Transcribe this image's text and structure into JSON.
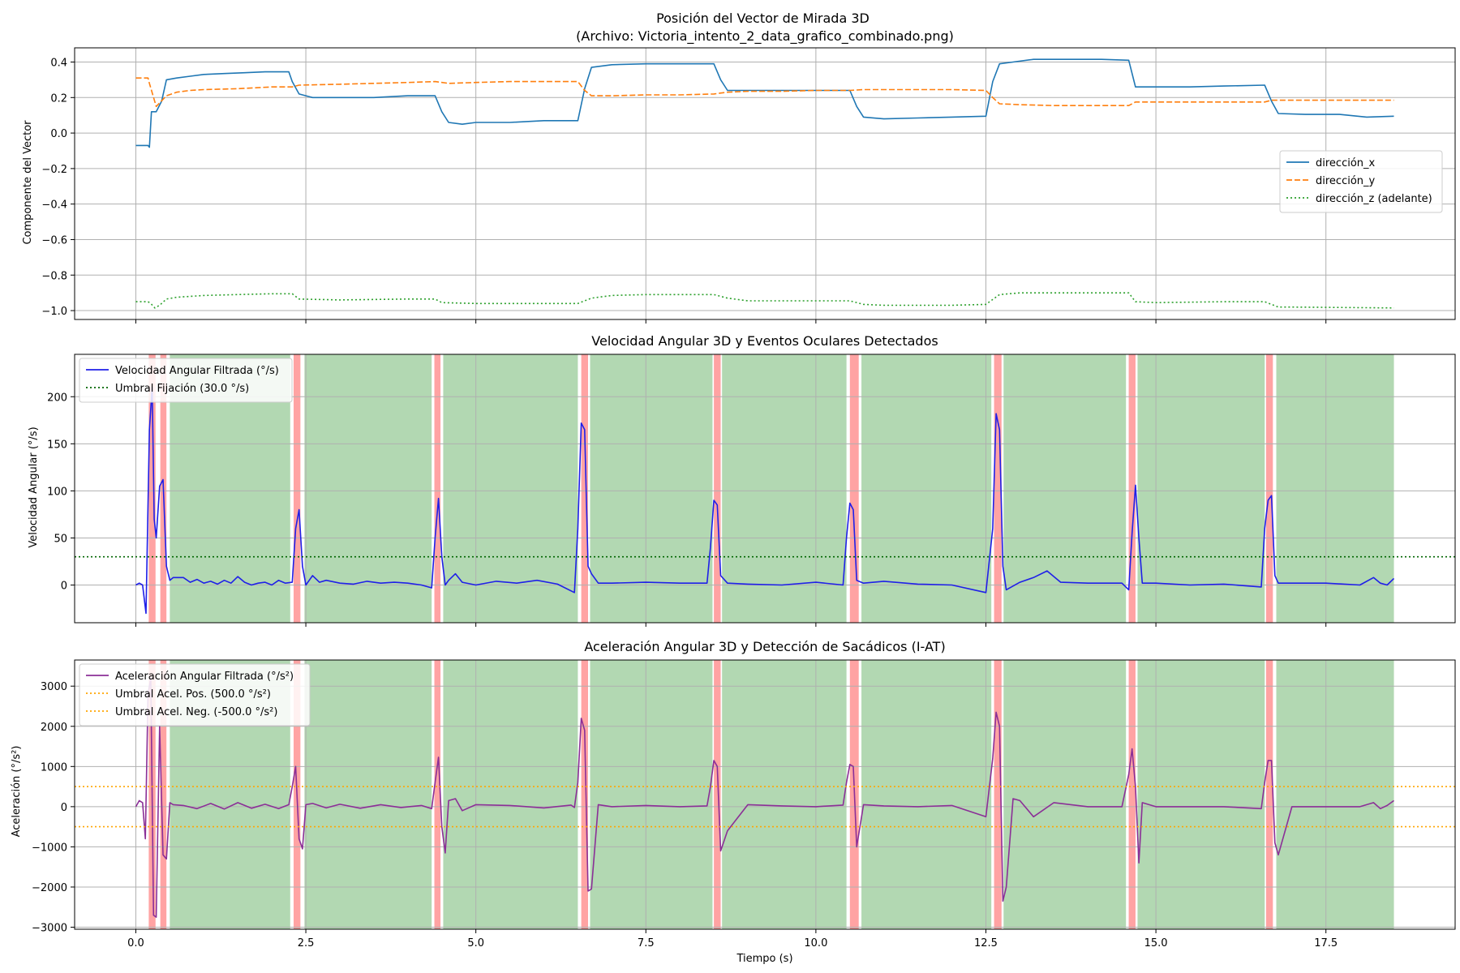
{
  "chart_data": [
    {
      "type": "line",
      "title": "Posición del Vector de Mirada 3D\n(Archivo: Victoria_intento_2_data_grafico_combinado.png)",
      "xlabel": "",
      "ylabel": "Componente del Vector",
      "xlim": [
        -0.9,
        19.4
      ],
      "ylim": [
        -1.05,
        0.48
      ],
      "xticks": [
        0,
        2.5,
        5,
        7.5,
        10,
        12.5,
        15,
        17.5
      ],
      "yticks": [
        0.4,
        0.2,
        0.0,
        -0.2,
        -0.4,
        -0.6,
        -0.8,
        -1.0
      ],
      "yticklabels": [
        "0.4",
        "0.2",
        "0.0",
        "−0.2",
        "−0.4",
        "−0.6",
        "−0.8",
        "−1.0"
      ],
      "grid": true,
      "legend_position": "center-right",
      "series": [
        {
          "name": "dirección_x",
          "color": "#1f77b4",
          "style": "solid",
          "x": [
            0,
            0.18,
            0.2,
            0.23,
            0.3,
            0.38,
            0.45,
            0.6,
            0.8,
            1.0,
            1.3,
            1.6,
            1.9,
            2.25,
            2.3,
            2.4,
            2.6,
            3.0,
            3.5,
            4.0,
            4.4,
            4.5,
            4.6,
            4.8,
            5.0,
            5.5,
            6.0,
            6.5,
            6.6,
            6.7,
            7.0,
            7.5,
            8.0,
            8.5,
            8.6,
            8.7,
            9.0,
            9.5,
            10.0,
            10.5,
            10.6,
            10.7,
            11.0,
            11.5,
            12.0,
            12.5,
            12.6,
            12.7,
            12.9,
            13.2,
            13.7,
            14.2,
            14.6,
            14.7,
            15.0,
            15.5,
            16.0,
            16.6,
            16.7,
            16.8,
            17.2,
            17.7,
            18.1,
            18.5
          ],
          "y": [
            -0.07,
            -0.07,
            -0.08,
            0.12,
            0.12,
            0.18,
            0.3,
            0.31,
            0.32,
            0.33,
            0.335,
            0.34,
            0.345,
            0.345,
            0.29,
            0.22,
            0.2,
            0.2,
            0.2,
            0.21,
            0.21,
            0.12,
            0.06,
            0.05,
            0.06,
            0.06,
            0.07,
            0.07,
            0.25,
            0.37,
            0.385,
            0.39,
            0.39,
            0.39,
            0.3,
            0.24,
            0.24,
            0.24,
            0.24,
            0.24,
            0.15,
            0.09,
            0.08,
            0.085,
            0.09,
            0.095,
            0.29,
            0.39,
            0.4,
            0.415,
            0.415,
            0.415,
            0.41,
            0.26,
            0.26,
            0.26,
            0.265,
            0.27,
            0.18,
            0.11,
            0.105,
            0.105,
            0.09,
            0.095
          ]
        },
        {
          "name": "dirección_y",
          "color": "#ff7f0e",
          "style": "dashed",
          "x": [
            0,
            0.18,
            0.2,
            0.3,
            0.45,
            0.6,
            0.8,
            1.0,
            1.5,
            2.0,
            2.3,
            2.4,
            3.0,
            3.5,
            4.0,
            4.4,
            4.6,
            5.0,
            5.5,
            6.0,
            6.5,
            6.6,
            6.7,
            7.0,
            7.5,
            8.0,
            8.5,
            8.7,
            9.0,
            9.5,
            10.0,
            10.5,
            10.7,
            11.0,
            11.5,
            12.0,
            12.5,
            12.6,
            12.7,
            13.0,
            13.5,
            14.0,
            14.6,
            14.7,
            15.0,
            16.0,
            16.6,
            16.7,
            17.0,
            18.5
          ],
          "y": [
            0.31,
            0.31,
            0.28,
            0.15,
            0.21,
            0.23,
            0.24,
            0.245,
            0.25,
            0.26,
            0.26,
            0.27,
            0.275,
            0.28,
            0.285,
            0.29,
            0.28,
            0.285,
            0.29,
            0.29,
            0.29,
            0.24,
            0.21,
            0.21,
            0.215,
            0.215,
            0.22,
            0.23,
            0.235,
            0.235,
            0.24,
            0.24,
            0.245,
            0.245,
            0.245,
            0.245,
            0.24,
            0.2,
            0.165,
            0.16,
            0.155,
            0.155,
            0.155,
            0.175,
            0.175,
            0.175,
            0.175,
            0.185,
            0.185,
            0.185
          ]
        },
        {
          "name": "dirección_z (adelante)",
          "color": "#2ca02c",
          "style": "dotted",
          "x": [
            0,
            0.18,
            0.22,
            0.28,
            0.35,
            0.45,
            0.6,
            1.0,
            1.5,
            2.0,
            2.3,
            2.4,
            3.0,
            4.0,
            4.4,
            4.5,
            5.0,
            6.0,
            6.5,
            6.7,
            7.0,
            7.5,
            8.0,
            8.5,
            8.7,
            9.0,
            10.0,
            10.5,
            10.7,
            11.0,
            12.0,
            12.5,
            12.7,
            13.0,
            14.0,
            14.6,
            14.7,
            15.0,
            16.0,
            16.6,
            16.8,
            17.0,
            18.5
          ],
          "y": [
            -0.95,
            -0.95,
            -0.96,
            -0.985,
            -0.97,
            -0.935,
            -0.925,
            -0.915,
            -0.91,
            -0.905,
            -0.905,
            -0.935,
            -0.94,
            -0.935,
            -0.935,
            -0.955,
            -0.96,
            -0.96,
            -0.96,
            -0.93,
            -0.915,
            -0.91,
            -0.91,
            -0.91,
            -0.93,
            -0.945,
            -0.945,
            -0.945,
            -0.965,
            -0.97,
            -0.97,
            -0.965,
            -0.91,
            -0.9,
            -0.9,
            -0.9,
            -0.95,
            -0.955,
            -0.95,
            -0.95,
            -0.98,
            -0.98,
            -0.985
          ]
        }
      ]
    },
    {
      "type": "line",
      "title": "Velocidad Angular 3D y Eventos Oculares Detectados",
      "xlabel": "",
      "ylabel": "Velocidad Angular (°/s)",
      "xlim": [
        -0.9,
        19.4
      ],
      "ylim": [
        -40,
        245
      ],
      "xticks": [
        0,
        2.5,
        5,
        7.5,
        10,
        12.5,
        15,
        17.5
      ],
      "yticks": [
        0,
        50,
        100,
        150,
        200
      ],
      "yticklabels": [
        "0",
        "50",
        "100",
        "150",
        "200"
      ],
      "grid": true,
      "legend_position": "top-left",
      "series": [
        {
          "name": "Velocidad Angular Filtrada (°/s)",
          "color": "#1f1fe8",
          "style": "solid",
          "x": [
            0,
            0.05,
            0.1,
            0.15,
            0.2,
            0.24,
            0.27,
            0.3,
            0.35,
            0.4,
            0.45,
            0.5,
            0.55,
            0.7,
            0.8,
            0.9,
            1.0,
            1.1,
            1.2,
            1.3,
            1.4,
            1.5,
            1.6,
            1.7,
            1.8,
            1.9,
            2.0,
            2.1,
            2.2,
            2.3,
            2.35,
            2.4,
            2.45,
            2.5,
            2.6,
            2.7,
            2.8,
            3.0,
            3.2,
            3.4,
            3.6,
            3.8,
            4.0,
            4.2,
            4.35,
            4.4,
            4.45,
            4.5,
            4.55,
            4.6,
            4.7,
            4.8,
            5.0,
            5.3,
            5.6,
            5.9,
            6.2,
            6.45,
            6.5,
            6.55,
            6.6,
            6.65,
            6.7,
            6.8,
            7.0,
            7.5,
            8.0,
            8.4,
            8.45,
            8.5,
            8.55,
            8.6,
            8.7,
            9.0,
            9.5,
            10.0,
            10.4,
            10.45,
            10.5,
            10.55,
            10.6,
            10.7,
            11.0,
            11.5,
            12.0,
            12.5,
            12.6,
            12.65,
            12.7,
            12.75,
            12.8,
            13.0,
            13.2,
            13.4,
            13.6,
            14.0,
            14.5,
            14.6,
            14.65,
            14.7,
            14.75,
            14.8,
            15.0,
            15.5,
            16.0,
            16.55,
            16.6,
            16.65,
            16.7,
            16.75,
            16.8,
            17.0,
            17.5,
            18.0,
            18.2,
            18.3,
            18.4,
            18.5
          ],
          "y": [
            0,
            2,
            0,
            -30,
            165,
            210,
            70,
            50,
            105,
            112,
            20,
            5,
            8,
            8,
            3,
            6,
            2,
            4,
            1,
            5,
            2,
            9,
            3,
            0,
            2,
            3,
            0,
            5,
            2,
            3,
            60,
            80,
            20,
            0,
            10,
            3,
            5,
            2,
            1,
            4,
            2,
            3,
            2,
            0,
            -3,
            50,
            92,
            30,
            0,
            5,
            12,
            3,
            0,
            4,
            2,
            5,
            1,
            -8,
            60,
            172,
            165,
            20,
            12,
            2,
            2,
            3,
            2,
            2,
            40,
            90,
            85,
            10,
            2,
            1,
            0,
            3,
            0,
            50,
            87,
            80,
            5,
            2,
            4,
            1,
            0,
            -8,
            60,
            182,
            165,
            20,
            -5,
            3,
            8,
            15,
            3,
            2,
            2,
            -5,
            55,
            106,
            50,
            2,
            2,
            0,
            1,
            -2,
            60,
            90,
            95,
            10,
            2,
            2,
            2,
            0,
            8,
            2,
            0,
            7
          ]
        },
        {
          "name": "Umbral Fijación (30.0 °/s)",
          "color": "#006400",
          "style": "dotted",
          "x": [
            -0.9,
            19.4
          ],
          "y": [
            30,
            30
          ]
        }
      ]
    },
    {
      "type": "line",
      "title": "Aceleración Angular 3D y Detección de Sacádicos (I-AT)",
      "xlabel": "Tiempo (s)",
      "ylabel": "Aceleración (°/s²)",
      "xlim": [
        -0.9,
        19.4
      ],
      "ylim": [
        -3050,
        3650
      ],
      "xticks": [
        0,
        2.5,
        5,
        7.5,
        10,
        12.5,
        15,
        17.5
      ],
      "xticklabels": [
        "0.0",
        "2.5",
        "5.0",
        "7.5",
        "10.0",
        "12.5",
        "15.0",
        "17.5"
      ],
      "yticks": [
        3000,
        2000,
        1000,
        0,
        -1000,
        -2000,
        -3000
      ],
      "yticklabels": [
        "3000",
        "2000",
        "1000",
        "0",
        "−1000",
        "−2000",
        "−3000"
      ],
      "grid": true,
      "legend_position": "top-left",
      "series": [
        {
          "name": "Aceleración Angular Filtrada (°/s²)",
          "color": "#8b2f97",
          "style": "solid",
          "x": [
            0,
            0.05,
            0.1,
            0.14,
            0.18,
            0.22,
            0.26,
            0.3,
            0.35,
            0.4,
            0.45,
            0.5,
            0.55,
            0.7,
            0.9,
            1.1,
            1.3,
            1.5,
            1.7,
            1.9,
            2.1,
            2.25,
            2.3,
            2.35,
            2.4,
            2.45,
            2.5,
            2.6,
            2.8,
            3.0,
            3.3,
            3.6,
            3.9,
            4.2,
            4.35,
            4.4,
            4.45,
            4.5,
            4.55,
            4.6,
            4.7,
            4.8,
            5.0,
            5.5,
            6.0,
            6.4,
            6.45,
            6.5,
            6.55,
            6.6,
            6.65,
            6.7,
            6.8,
            7.0,
            7.5,
            8.0,
            8.4,
            8.45,
            8.5,
            8.55,
            8.6,
            8.7,
            9.0,
            9.5,
            10.0,
            10.4,
            10.45,
            10.5,
            10.55,
            10.6,
            10.7,
            11.0,
            11.5,
            12.0,
            12.5,
            12.6,
            12.65,
            12.7,
            12.75,
            12.8,
            12.9,
            13.0,
            13.2,
            13.5,
            14.0,
            14.5,
            14.6,
            14.65,
            14.7,
            14.75,
            14.8,
            15.0,
            15.5,
            16.0,
            16.55,
            16.6,
            16.65,
            16.7,
            16.75,
            16.8,
            17.0,
            17.5,
            18.0,
            18.2,
            18.3,
            18.4,
            18.5
          ],
          "y": [
            0,
            150,
            100,
            -800,
            2800,
            3200,
            -2700,
            -2750,
            2000,
            -1200,
            -1300,
            100,
            50,
            30,
            -50,
            80,
            -60,
            100,
            -40,
            60,
            -50,
            50,
            500,
            1000,
            -800,
            -1050,
            50,
            80,
            -30,
            60,
            -40,
            50,
            -20,
            30,
            -50,
            600,
            1230,
            -500,
            -1150,
            150,
            200,
            -100,
            50,
            30,
            -30,
            40,
            -20,
            600,
            2200,
            1900,
            -2100,
            -2050,
            50,
            0,
            30,
            0,
            20,
            500,
            1150,
            1000,
            -1100,
            -600,
            50,
            20,
            0,
            40,
            600,
            1050,
            1000,
            -1000,
            50,
            20,
            0,
            30,
            -250,
            1200,
            2350,
            2000,
            -2350,
            -2000,
            200,
            150,
            -250,
            100,
            0,
            0,
            800,
            1440,
            500,
            -1400,
            100,
            0,
            0,
            0,
            -50,
            600,
            1150,
            1150,
            -900,
            -1200,
            0,
            0,
            0,
            100,
            -50,
            30,
            150
          ]
        },
        {
          "name": "Umbral Acel. Pos. (500.0 °/s²)",
          "color": "#ffa500",
          "style": "dotted",
          "x": [
            -0.9,
            19.4
          ],
          "y": [
            500,
            500
          ]
        },
        {
          "name": "Umbral Acel. Neg. (-500.0 °/s²)",
          "color": "#ffa500",
          "style": "dotted",
          "x": [
            -0.9,
            19.4
          ],
          "y": [
            -500,
            -500
          ]
        }
      ]
    }
  ],
  "events": {
    "saccade_color": "#ff9999",
    "fixation_color": "#b2d8b2",
    "saccades": [
      [
        0.19,
        0.29
      ],
      [
        0.36,
        0.45
      ],
      [
        2.32,
        2.42
      ],
      [
        4.39,
        4.48
      ],
      [
        6.55,
        6.65
      ],
      [
        8.5,
        8.6
      ],
      [
        10.5,
        10.63
      ],
      [
        12.62,
        12.73
      ],
      [
        14.6,
        14.7
      ],
      [
        16.62,
        16.72
      ]
    ],
    "fixations": [
      [
        0.5,
        2.27
      ],
      [
        2.48,
        4.35
      ],
      [
        4.52,
        6.5
      ],
      [
        6.68,
        8.48
      ],
      [
        8.62,
        10.45
      ],
      [
        10.67,
        12.58
      ],
      [
        12.76,
        14.56
      ],
      [
        14.73,
        16.6
      ],
      [
        16.77,
        18.5
      ]
    ]
  },
  "colors": {
    "grid": "#b0b0b0",
    "frame": "#000000",
    "background": "#ffffff"
  }
}
